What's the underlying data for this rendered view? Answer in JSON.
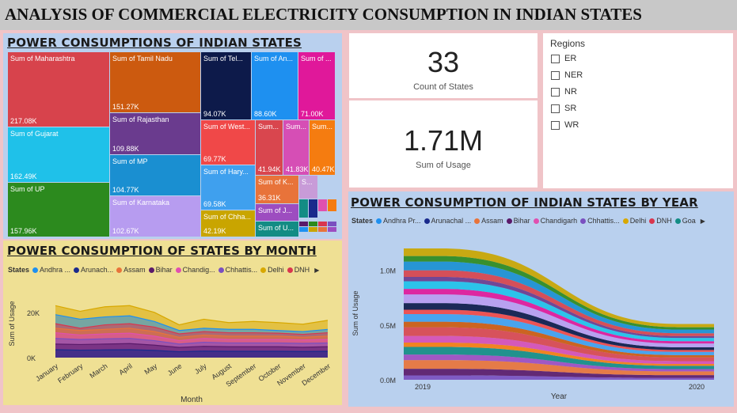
{
  "title": "ANALYSIS OF COMMERCIAL ELECTRICITY CONSUMPTION IN INDIAN STATES",
  "treemap": {
    "title": "POWER CONSUMPTIONS OF INDIAN STATES",
    "tiles": [
      {
        "label": "Sum of Maharashtra",
        "value": "217.08K",
        "color": "#d7434c"
      },
      {
        "label": "Sum of Gujarat",
        "value": "162.49K",
        "color": "#1fc1e9"
      },
      {
        "label": "Sum of UP",
        "value": "157.96K",
        "color": "#2c8a1e"
      },
      {
        "label": "Sum of Tamil Nadu",
        "value": "151.27K",
        "color": "#cc5a0f"
      },
      {
        "label": "Sum of Rajasthan",
        "value": "109.88K",
        "color": "#6a3b8e"
      },
      {
        "label": "Sum of MP",
        "value": "104.77K",
        "color": "#1a8fd1"
      },
      {
        "label": "Sum of Karnataka",
        "value": "102.67K",
        "color": "#b79cf0"
      },
      {
        "label": "Sum of Tel...",
        "value": "94.07K",
        "color": "#0d1a4a"
      },
      {
        "label": "Sum of An...",
        "value": "88.60K",
        "color": "#1e90f0"
      },
      {
        "label": "Sum of ...",
        "value": "71.00K",
        "color": "#e0189a"
      },
      {
        "label": "Sum of West...",
        "value": "69.77K",
        "color": "#f04848"
      },
      {
        "label": "Sum of Hary...",
        "value": "69.58K",
        "color": "#3fa0ee"
      },
      {
        "label": "Sum of Chha...",
        "value": "42.19K",
        "color": "#c9a500"
      },
      {
        "label": "Sum...",
        "value": "41.94K",
        "color": "#d9464e"
      },
      {
        "label": "Sum...",
        "value": "41.83K",
        "color": "#d64eb5"
      },
      {
        "label": "Sum...",
        "value": "40.47K",
        "color": "#f57c10"
      },
      {
        "label": "Sum of K...",
        "value": "36.31K",
        "color": "#e8733a"
      },
      {
        "label": "Sum of J...",
        "value": "",
        "color": "#9d4dc0"
      },
      {
        "label": "Sum of U...",
        "value": "",
        "color": "#138c84"
      },
      {
        "label": "S...",
        "value": "",
        "color": "#c89bd8"
      }
    ]
  },
  "count_card": {
    "value": "33",
    "label": "Count of States"
  },
  "usage_card": {
    "value": "1.71M",
    "label": "Sum of Usage"
  },
  "regions": {
    "title": "Regions",
    "options": [
      "ER",
      "NER",
      "NR",
      "SR",
      "WR"
    ]
  },
  "year_chart": {
    "title": "POWER CONSUMPTION OF INDIAN STATES BY YEAR",
    "legend_title": "States",
    "legend": [
      {
        "name": "Andhra Pr...",
        "color": "#1e90f0"
      },
      {
        "name": "Arunachal ...",
        "color": "#1a2a8c"
      },
      {
        "name": "Assam",
        "color": "#e8733a"
      },
      {
        "name": "Bihar",
        "color": "#5a1a6a"
      },
      {
        "name": "Chandigarh",
        "color": "#e050b0"
      },
      {
        "name": "Chhattis...",
        "color": "#7a50c0"
      },
      {
        "name": "Delhi",
        "color": "#d8a800"
      },
      {
        "name": "DNH",
        "color": "#d9364e"
      },
      {
        "name": "Goa",
        "color": "#138c84"
      }
    ],
    "more_glyph": "▶",
    "xlabel": "Year",
    "ylabel": "Sum of Usage",
    "y_ticks": [
      "1.0M",
      "0.5M",
      "0.0M"
    ],
    "x_ticks": [
      "2019",
      "2020"
    ]
  },
  "month_chart": {
    "title": "POWER CONSUMPTION OF STATES BY MONTH",
    "legend_title": "States",
    "legend": [
      {
        "name": "Andhra ...",
        "color": "#1e90f0"
      },
      {
        "name": "Arunach...",
        "color": "#1a2a8c"
      },
      {
        "name": "Assam",
        "color": "#e8733a"
      },
      {
        "name": "Bihar",
        "color": "#5a1a6a"
      },
      {
        "name": "Chandig...",
        "color": "#e050b0"
      },
      {
        "name": "Chhattis...",
        "color": "#7a50c0"
      },
      {
        "name": "Delhi",
        "color": "#d8a800"
      },
      {
        "name": "DNH",
        "color": "#d9364e"
      }
    ],
    "more_glyph": "▶",
    "xlabel": "Month",
    "ylabel": "Sum of Usage",
    "y_ticks": [
      "20K",
      "0K"
    ],
    "months": [
      "January",
      "February",
      "March",
      "April",
      "May",
      "June",
      "July",
      "August",
      "September",
      "October",
      "November",
      "December"
    ]
  },
  "chart_data": [
    {
      "type": "area",
      "title": "POWER CONSUMPTION OF INDIAN STATES BY YEAR",
      "x": [
        "2019",
        "2020"
      ],
      "xlabel": "Year",
      "ylabel": "Sum of Usage",
      "ylim": [
        0,
        1200000
      ],
      "stacked": true,
      "totals": [
        1200000,
        510000
      ],
      "layer_colors": [
        "#c9a500",
        "#2c8a1e",
        "#1a8fd1",
        "#d7434c",
        "#6a3b8e",
        "#1fc1e9",
        "#e0189a",
        "#b79cf0",
        "#0d1a4a",
        "#f04848",
        "#3fa0ee",
        "#cc5a0f",
        "#d9464e",
        "#d64eb5",
        "#f57c10",
        "#138c84",
        "#9d4dc0",
        "#e8733a",
        "#5a1a6a",
        "#7a50c0"
      ]
    },
    {
      "type": "area",
      "title": "POWER CONSUMPTION OF STATES BY MONTH",
      "x": [
        "January",
        "February",
        "March",
        "April",
        "May",
        "June",
        "July",
        "August",
        "September",
        "October",
        "November",
        "December"
      ],
      "xlabel": "Month",
      "ylabel": "Sum of Usage",
      "ylim": [
        0,
        28000
      ],
      "series": [
        {
          "name": "Delhi",
          "values": [
            23000,
            20500,
            22500,
            23000,
            20000,
            14500,
            17000,
            15500,
            16000,
            15500,
            14800,
            16500
          ]
        },
        {
          "name": "Andhra Pradesh",
          "values": [
            19000,
            17000,
            18000,
            18500,
            16000,
            12000,
            13000,
            12500,
            12500,
            12000,
            11500,
            12500
          ]
        },
        {
          "name": "DNH",
          "values": [
            15000,
            13000,
            14500,
            15000,
            13500,
            10500,
            11500,
            11000,
            11000,
            10800,
            10300,
            11000
          ]
        },
        {
          "name": "Assam",
          "values": [
            13000,
            12000,
            12500,
            13000,
            11500,
            9000,
            10000,
            9500,
            9500,
            9500,
            9000,
            9500
          ]
        },
        {
          "name": "Chandigarh",
          "values": [
            11000,
            10000,
            10500,
            10800,
            9500,
            7500,
            8500,
            8000,
            8000,
            8000,
            7800,
            8000
          ]
        },
        {
          "name": "Chhattisgarh",
          "values": [
            8500,
            8000,
            8300,
            8500,
            7500,
            6000,
            6800,
            6500,
            6500,
            6500,
            6300,
            6500
          ]
        },
        {
          "name": "Bihar",
          "values": [
            6000,
            5800,
            6000,
            6200,
            5500,
            4500,
            5000,
            4800,
            4800,
            4800,
            4600,
            4800
          ]
        },
        {
          "name": "Arunachal Pradesh",
          "values": [
            3500,
            3300,
            3400,
            3500,
            3200,
            2600,
            2900,
            2800,
            2800,
            2800,
            2700,
            2800
          ]
        }
      ]
    }
  ]
}
